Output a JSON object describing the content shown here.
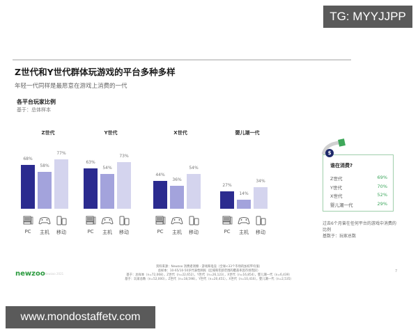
{
  "watermarks": {
    "top": "TG: MYYJJPP",
    "bottom": "www.mondostaffetv.com"
  },
  "slide": {
    "title": "Z世代和Y世代群体玩游戏的平台多种多样",
    "subtitle": "年轻一代同样是最愿意在游戏上消费的一代",
    "chart_title": "各平台玩家比例",
    "chart_base": "基于：总体样本",
    "page_number": "7"
  },
  "platforms": [
    {
      "label": "PC",
      "icon": "pc-icon"
    },
    {
      "label": "主机",
      "icon": "gamepad-icon"
    },
    {
      "label": "移动",
      "icon": "mobile-icon"
    }
  ],
  "groups": [
    {
      "label": "Z世代",
      "values": [
        "68%",
        "58%",
        "77%"
      ]
    },
    {
      "label": "Y世代",
      "values": [
        "63%",
        "54%",
        "73%"
      ]
    },
    {
      "label": "X世代",
      "values": [
        "44%",
        "36%",
        "54%"
      ]
    },
    {
      "label": "婴儿潮一代",
      "values": [
        "27%",
        "14%",
        "34%"
      ]
    }
  ],
  "spending": {
    "title": "谁在消费?",
    "rows": [
      {
        "label": "Z世代",
        "value": "69%"
      },
      {
        "label": "Y世代",
        "value": "70%"
      },
      {
        "label": "X世代",
        "value": "52%"
      },
      {
        "label": "婴儿潮一代",
        "value": "29%"
      }
    ],
    "note_line1": "过去6个月曾在任何平台的游戏中消费的比例",
    "note_line2": "基数于：玩家总数"
  },
  "footer": {
    "logo": "newzoo",
    "logo_tag": "Newzoo 2021",
    "source_lines": [
      "资料来源：Newzoo 消费者洞察 - 游戏和电竞（全球<33个市场的加权平均值）",
      "总样本：10-65/10-50岁代表性网民（区域和年龄范围的覆盖率因市场而异）",
      "基于：总样本（n=72,068），Z世代（n=22,652），Y世代（n=26,123），X世代（n=16,854），婴儿潮一代（n=6,439）",
      "基于：玩家总数（n=52,000），Z世代（n=18,598），Y世代（n=20,451），X世代（n=10,416），婴儿潮一代（n=2,535）"
    ]
  },
  "colors": {
    "pc": "#2b2b8f",
    "console": "#a3a3dc",
    "mobile": "#d4d4ee",
    "accent_green": "#3aa55a",
    "brand_green": "#2a9a3e"
  },
  "chart_data": {
    "type": "bar",
    "title": "各平台玩家比例",
    "subtitle": "基于：总体样本",
    "categories": [
      "Z世代",
      "Y世代",
      "X世代",
      "婴儿潮一代"
    ],
    "series": [
      {
        "name": "PC",
        "values": [
          68,
          63,
          44,
          27
        ]
      },
      {
        "name": "主机",
        "values": [
          58,
          54,
          36,
          14
        ]
      },
      {
        "name": "移动",
        "values": [
          77,
          73,
          54,
          34
        ]
      }
    ],
    "xlabel": "",
    "ylabel": "",
    "ylim": [
      0,
      100
    ],
    "grid": false,
    "legend": "icons below bars",
    "side_table": {
      "title": "谁在消费?",
      "categories": [
        "Z世代",
        "Y世代",
        "X世代",
        "婴儿潮一代"
      ],
      "values": [
        69,
        70,
        52,
        29
      ]
    }
  }
}
